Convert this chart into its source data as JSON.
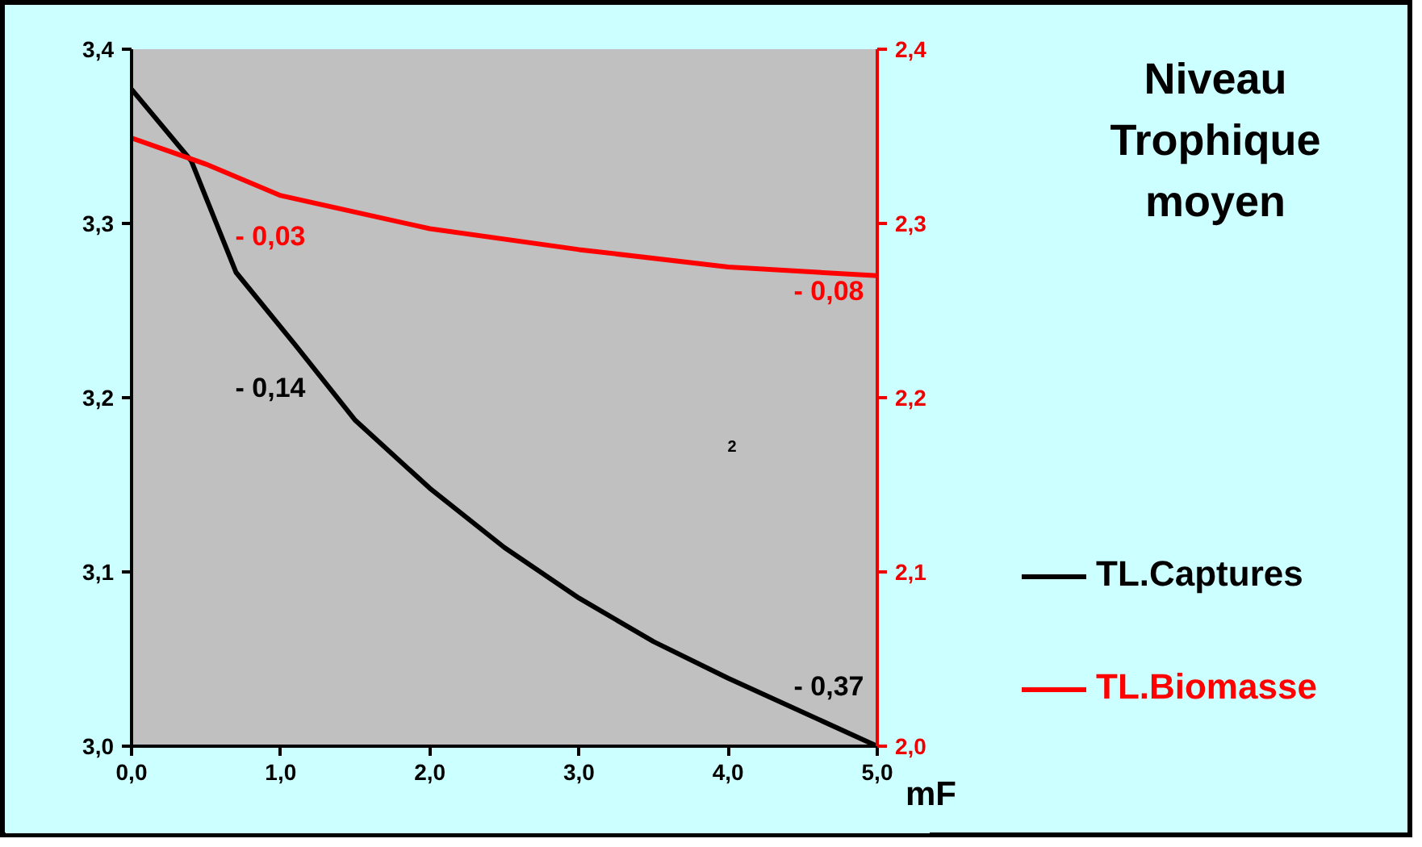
{
  "chart_data": {
    "type": "line",
    "title": "Niveau Trophique moyen",
    "xlabel": "mF",
    "xlim": [
      0,
      5
    ],
    "xticks": [
      {
        "value": 0,
        "label": "0,0"
      },
      {
        "value": 1,
        "label": "1,0"
      },
      {
        "value": 2,
        "label": "2,0"
      },
      {
        "value": 3,
        "label": "3,0"
      },
      {
        "value": 4,
        "label": "4,0"
      },
      {
        "value": 5,
        "label": "5,0"
      }
    ],
    "ylim": [
      3.0,
      3.4
    ],
    "yticks": [
      {
        "value": 3.0,
        "label": "3,0"
      },
      {
        "value": 3.1,
        "label": "3,1"
      },
      {
        "value": 3.2,
        "label": "3,2"
      },
      {
        "value": 3.3,
        "label": "3,3"
      },
      {
        "value": 3.4,
        "label": "3,4"
      }
    ],
    "y2lim": [
      2.0,
      2.4
    ],
    "y2ticks": [
      {
        "value": 2.0,
        "label": "2,0"
      },
      {
        "value": 2.1,
        "label": "2,1"
      },
      {
        "value": 2.2,
        "label": "2,2"
      },
      {
        "value": 2.3,
        "label": "2,3"
      },
      {
        "value": 2.4,
        "label": "2,4"
      }
    ],
    "series": [
      {
        "name": "TL.Captures",
        "color": "#000000",
        "x": [
          0,
          0.4,
          0.7,
          1.1,
          1.5,
          2,
          2.5,
          3,
          3.5,
          4,
          5
        ],
        "values": [
          3.377,
          3.336,
          3.272,
          3.23,
          3.187,
          3.148,
          3.114,
          3.085,
          3.06,
          3.039,
          3.0
        ]
      },
      {
        "name": "TL.Biomasse",
        "color": "#ff0000",
        "axis": "y2",
        "x": [
          0,
          0.5,
          1,
          2,
          3,
          4,
          5
        ],
        "values": [
          2.349,
          2.334,
          2.316,
          2.297,
          2.285,
          2.275,
          2.27
        ]
      }
    ],
    "annotations": [
      "- 0,03",
      "- 0,08",
      "- 0,14",
      "- 0,37",
      "2"
    ],
    "legend": "right",
    "grid": false
  }
}
